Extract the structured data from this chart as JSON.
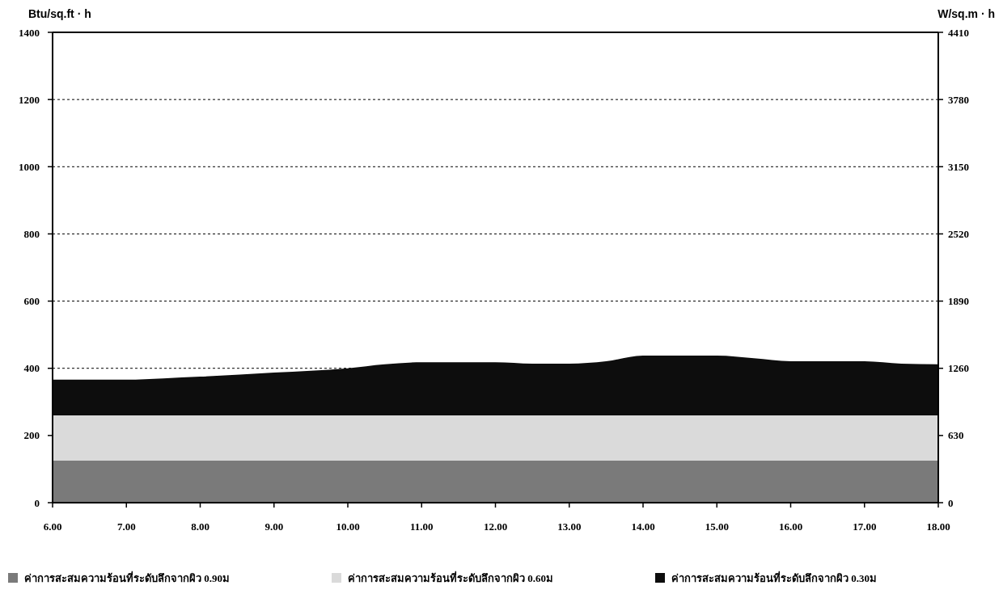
{
  "chart_data": {
    "type": "area",
    "stacked": true,
    "ylabel": "Btu/sq.ft · h",
    "y2label": "W/sq.m · h",
    "x": [
      6,
      7,
      7.5,
      8,
      9,
      10,
      10.5,
      11,
      12,
      12.5,
      13,
      13.5,
      14,
      15,
      15.5,
      16,
      17,
      17.5,
      18
    ],
    "series": [
      {
        "name": "ค่าการสะสมความร้อนที่ระดับลึกจากผิว 0.90ม",
        "color": "#7a7a7a",
        "values": [
          125,
          125,
          125,
          125,
          125,
          125,
          125,
          125,
          125,
          125,
          125,
          125,
          125,
          125,
          125,
          125,
          125,
          125,
          125
        ]
      },
      {
        "name": "ค่าการสะสมความร้อนที่ระดับลึกจากผิว 0.60ม",
        "color": "#dadada",
        "values": [
          135,
          135,
          135,
          135,
          135,
          135,
          135,
          135,
          135,
          135,
          135,
          135,
          135,
          135,
          135,
          135,
          135,
          135,
          135
        ]
      },
      {
        "name": "ค่าการสะสมความร้อนที่ระดับลึกจากผิว 0.30ม",
        "color": "#0d0d0d",
        "values": [
          106,
          106,
          110,
          115,
          127,
          140,
          152,
          158,
          158,
          154,
          154,
          161,
          178,
          178,
          170,
          161,
          161,
          154,
          152
        ]
      }
    ],
    "xlim": [
      6,
      18
    ],
    "xticks": [
      {
        "value": 6,
        "label": "6.00"
      },
      {
        "value": 7,
        "label": "7.00"
      },
      {
        "value": 8,
        "label": "8.00"
      },
      {
        "value": 9,
        "label": "9.00"
      },
      {
        "value": 10,
        "label": "10.00"
      },
      {
        "value": 11,
        "label": "11.00"
      },
      {
        "value": 12,
        "label": "12.00"
      },
      {
        "value": 13,
        "label": "13.00"
      },
      {
        "value": 14,
        "label": "14.00"
      },
      {
        "value": 15,
        "label": "15.00"
      },
      {
        "value": 16,
        "label": "16.00"
      },
      {
        "value": 17,
        "label": "17.00"
      },
      {
        "value": 18,
        "label": "18.00"
      }
    ],
    "ylim": [
      0,
      1400
    ],
    "yticks": [
      0,
      200,
      400,
      600,
      800,
      1000,
      1200,
      1400
    ],
    "y2lim": [
      0,
      4410
    ],
    "y2ticks": [
      0,
      630,
      1260,
      1890,
      2520,
      3150,
      3780,
      4410
    ],
    "grid": "y",
    "legend": "bottom"
  }
}
